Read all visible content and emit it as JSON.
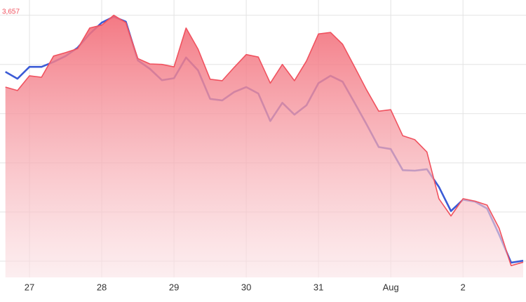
{
  "chart_data": {
    "type": "line",
    "annotation": "3,657",
    "categories": [
      null,
      null,
      "27",
      null,
      null,
      null,
      null,
      null,
      "28",
      null,
      null,
      null,
      null,
      null,
      "29",
      null,
      null,
      null,
      null,
      null,
      "30",
      null,
      null,
      null,
      null,
      null,
      "31",
      null,
      null,
      null,
      null,
      null,
      "Aug",
      null,
      null,
      null,
      null,
      null,
      "2",
      null,
      null,
      null,
      null,
      null
    ],
    "series": [
      {
        "color": "#3b5bd6",
        "values": [
          3645.5,
          3644.1,
          3646.5,
          3646.5,
          3647.5,
          3648.7,
          3650.4,
          3653.2,
          3655.5,
          3656.7,
          3655.7,
          3647.8,
          3646.1,
          3643.8,
          3644.2,
          3648.4,
          3645.8,
          3640.0,
          3639.7,
          3641.4,
          3642.4,
          3641.1,
          3635.5,
          3639.2,
          3636.8,
          3638.7,
          3643.2,
          3644.7,
          3643.5,
          3639.2,
          3634.8,
          3630.2,
          3629.8,
          3625.5,
          3625.4,
          3625.7,
          3622.1,
          3617.2,
          3619.5,
          3619.1,
          3617.7,
          3612.4,
          3606.7,
          3607.1
        ]
      },
      {
        "color": "#f0525f",
        "area": true,
        "values": [
          3642.4,
          3641.7,
          3644.7,
          3644.4,
          3648.7,
          3649.4,
          3650.2,
          3654.4,
          3655.0,
          3657.0,
          3655.5,
          3648.2,
          3647.1,
          3647.0,
          3646.5,
          3654.4,
          3650.1,
          3644.0,
          3643.7,
          3646.4,
          3649.0,
          3648.5,
          3643.2,
          3647.0,
          3643.7,
          3647.7,
          3653.2,
          3653.5,
          3651.1,
          3646.5,
          3641.8,
          3637.5,
          3637.8,
          3632.5,
          3631.7,
          3629.2,
          3619.7,
          3616.2,
          3619.7,
          3619.2,
          3618.4,
          3613.7,
          3606.1,
          3606.8
        ]
      }
    ],
    "ylim": [
      3603.7,
      3660.1
    ],
    "yticks": [
      3607,
      3617,
      3627,
      3637,
      3647,
      3657
    ],
    "grid": true
  }
}
